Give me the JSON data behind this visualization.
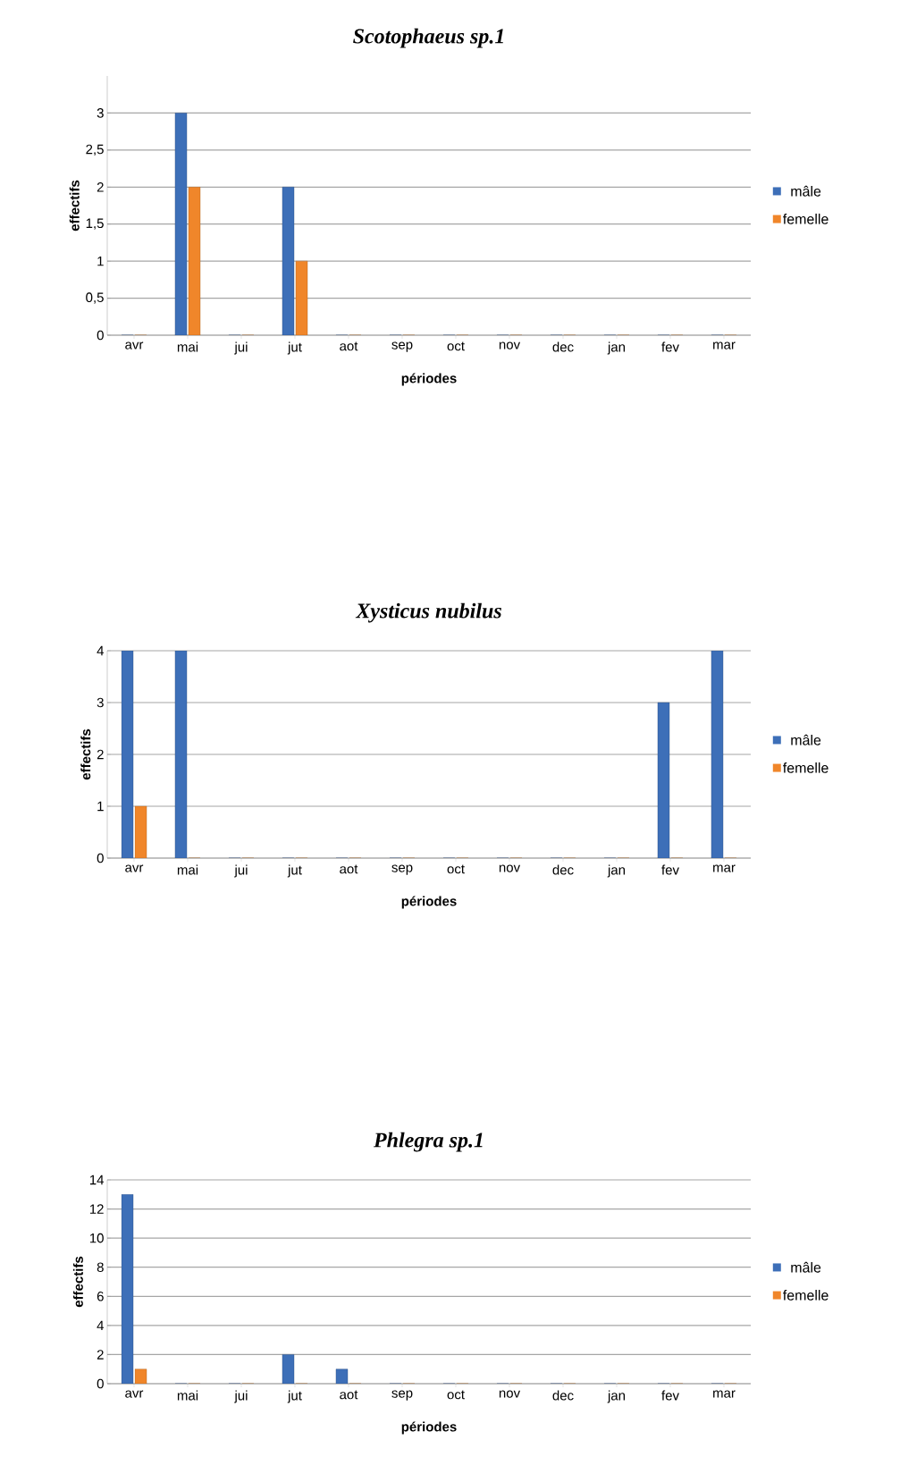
{
  "chart_data": [
    {
      "type": "bar",
      "title": "*Scotophaeus sp.1*",
      "xlabel": "périodes",
      "ylabel": "effectifs",
      "categories": [
        "avr",
        "mai",
        "jui",
        "jut",
        "aot",
        "sep",
        "oct",
        "nov",
        "dec",
        "jan",
        "fev",
        "mar"
      ],
      "series": [
        {
          "name": "mâle",
          "color": "#3d6fb8",
          "values": [
            0,
            3,
            0,
            2,
            0,
            0,
            0,
            0,
            0,
            0,
            0,
            0
          ]
        },
        {
          "name": "femelle",
          "color": "#f0862a",
          "values": [
            0,
            2,
            0,
            1,
            0,
            0,
            0,
            0,
            0,
            0,
            0,
            0
          ]
        }
      ],
      "ylim": [
        0,
        3.5
      ],
      "yticks": [
        0,
        {
          "value": 0.5,
          "label": "0,5"
        },
        1,
        {
          "value": 1.5,
          "label": "1,5"
        },
        2,
        {
          "value": 2.5,
          "label": "2,5"
        },
        3
      ],
      "grid": "y",
      "legend": "right"
    },
    {
      "type": "bar",
      "title": "*Xysticus nubilus*",
      "xlabel": "périodes",
      "ylabel": "effectifs",
      "categories": [
        "avr",
        "mai",
        "jui",
        "jut",
        "aot",
        "sep",
        "oct",
        "nov",
        "dec",
        "jan",
        "fev",
        "mar"
      ],
      "series": [
        {
          "name": "mâle",
          "color": "#3d6fb8",
          "values": [
            4,
            4,
            0,
            0,
            0,
            0,
            0,
            0,
            0,
            0,
            3,
            4
          ]
        },
        {
          "name": "femelle",
          "color": "#f0862a",
          "values": [
            1,
            0,
            0,
            0,
            0,
            0,
            0,
            0,
            0,
            0,
            0,
            0
          ]
        }
      ],
      "ylim": [
        0,
        4
      ],
      "yticks": [
        0,
        1,
        2,
        3,
        4
      ],
      "grid": "y",
      "legend": "right"
    },
    {
      "type": "bar",
      "title": "*Phlegra sp.1*",
      "xlabel": "périodes",
      "ylabel": "effectifs",
      "categories": [
        "avr",
        "mai",
        "jui",
        "jut",
        "aot",
        "sep",
        "oct",
        "nov",
        "dec",
        "jan",
        "fev",
        "mar"
      ],
      "series": [
        {
          "name": "mâle",
          "color": "#3d6fb8",
          "values": [
            13,
            0,
            0,
            2,
            1,
            0,
            0,
            0,
            0,
            0,
            0,
            0
          ]
        },
        {
          "name": "femelle",
          "color": "#f0862a",
          "values": [
            1,
            0,
            0,
            0,
            0,
            0,
            0,
            0,
            0,
            0,
            0,
            0
          ]
        }
      ],
      "ylim": [
        0,
        14
      ],
      "yticks": [
        0,
        2,
        4,
        6,
        8,
        10,
        12,
        14
      ],
      "grid": "y",
      "legend": "right"
    }
  ]
}
